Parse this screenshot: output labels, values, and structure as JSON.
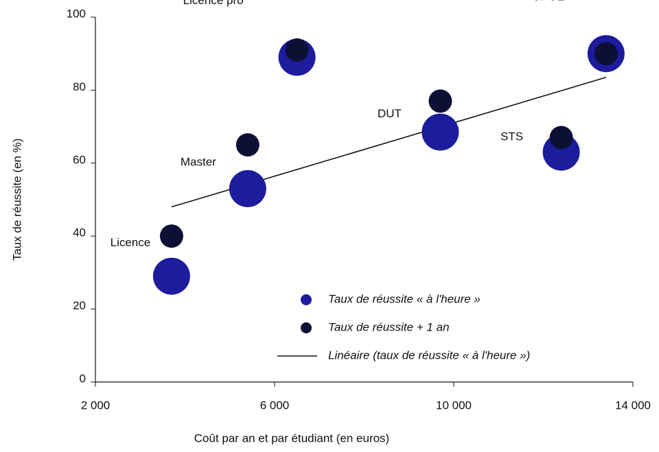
{
  "chart_data": {
    "type": "scatter",
    "x_label": "Coût par an et par étudiant (en euros)",
    "y_label": "Taux de réussite (en %)",
    "categories": [
      "Licence",
      "Master",
      "Licence pro",
      "DUT",
      "STS",
      "CPGE"
    ],
    "x": [
      3700,
      5400,
      6500,
      9700,
      12400,
      13400
    ],
    "series": [
      {
        "name": "Taux de réussite « à l'heure »",
        "color": "#1c1c9c",
        "values": [
          29,
          53,
          89,
          68.5,
          63,
          90
        ]
      },
      {
        "name": "Taux de réussite + 1 an",
        "color": "#0e0f35",
        "values": [
          40,
          65,
          91,
          77,
          67,
          90
        ]
      }
    ],
    "trendline": {
      "name": "Linéaire (taux de réussite « à l'heure »)",
      "x": [
        3700,
        13400
      ],
      "values": [
        48,
        83.5
      ],
      "color": "#111111"
    },
    "xlim": [
      2000,
      14000
    ],
    "xticks": [
      {
        "value": 2000,
        "label": "2 000"
      },
      {
        "value": 6000,
        "label": "6 000"
      },
      {
        "value": 10000,
        "label": "10 000"
      },
      {
        "value": 14000,
        "label": "14 000"
      }
    ],
    "ylim": [
      0,
      100
    ],
    "yticks": [
      0,
      20,
      40,
      60,
      80,
      100
    ]
  }
}
